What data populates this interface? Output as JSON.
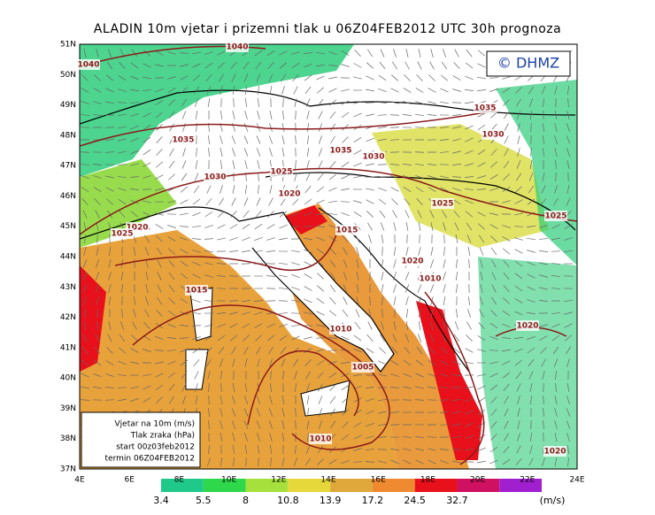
{
  "title": "ALADIN 10m vjetar i prizemni tlak u 06Z04FEB2012 UTC 30h prognoza",
  "copyright": "© DHMZ",
  "lat_labels": [
    "51N",
    "50N",
    "49N",
    "48N",
    "47N",
    "46N",
    "45N",
    "44N",
    "43N",
    "42N",
    "41N",
    "40N",
    "39N",
    "38N",
    "37N"
  ],
  "lon_labels": [
    "4E",
    "6E",
    "8E",
    "10E",
    "12E",
    "14E",
    "16E",
    "18E",
    "20E",
    "22E",
    "24E"
  ],
  "isobar_labels": [
    1040,
    1040,
    1035,
    1035,
    1030,
    1035,
    1030,
    1030,
    1025,
    1020,
    1020,
    1025,
    1025,
    1025,
    1015,
    1020,
    1010,
    1015,
    1010,
    1005,
    1020,
    1010,
    1020
  ],
  "legend": [
    "Vjetar na 10m (m/s)",
    "Tlak zraka (hPa)",
    "start 00z03feb2012",
    "termin 06Z04FEB2012"
  ],
  "colorbar": {
    "values": [
      3.4,
      5.5,
      8,
      10.8,
      13.9,
      17.2,
      24.5,
      32.7
    ],
    "unit": "(m/s)"
  }
}
